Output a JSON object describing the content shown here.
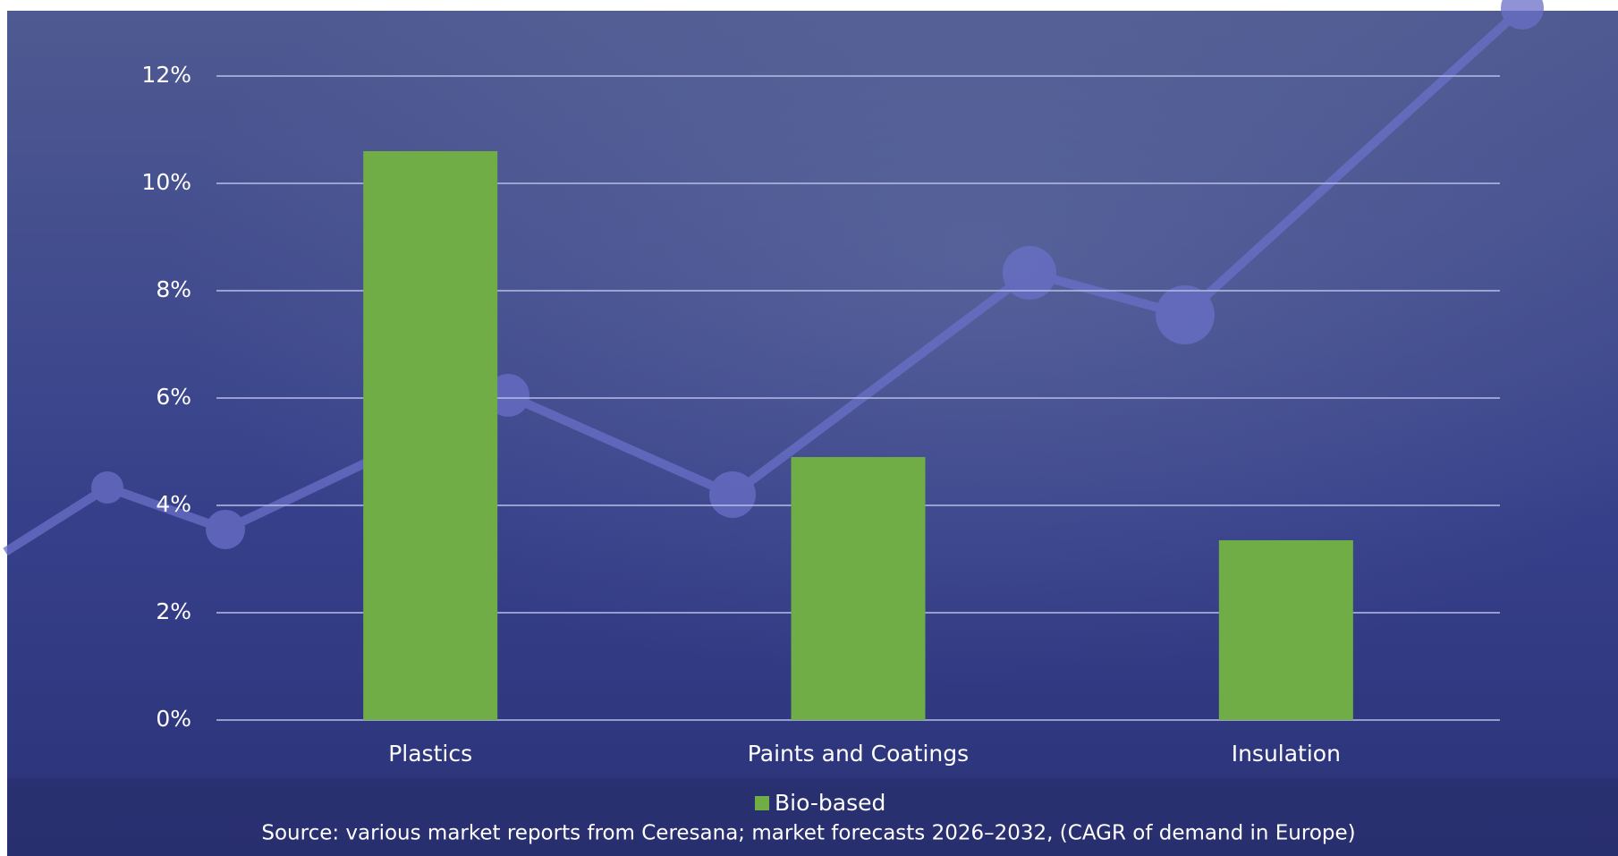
{
  "chart_data": {
    "type": "bar",
    "categories": [
      "Plastics",
      "Paints and Coatings",
      "Insulation"
    ],
    "series": [
      {
        "name": "Bio-based",
        "color": "#70ad47",
        "values": [
          10.6,
          4.9,
          3.35
        ]
      }
    ],
    "ylim": [
      0,
      12
    ],
    "yticks": [
      {
        "value": 0,
        "label": "0%"
      },
      {
        "value": 2,
        "label": "2%"
      },
      {
        "value": 4,
        "label": "4%"
      },
      {
        "value": 6,
        "label": "6%"
      },
      {
        "value": 8,
        "label": "8%"
      },
      {
        "value": 10,
        "label": "10%"
      },
      {
        "value": 12,
        "label": "12%"
      }
    ],
    "grid": true,
    "legend": "bottom",
    "source": "Source: various market reports from Ceresana; market forecasts 2026–2032, (CAGR of demand in Europe)"
  }
}
